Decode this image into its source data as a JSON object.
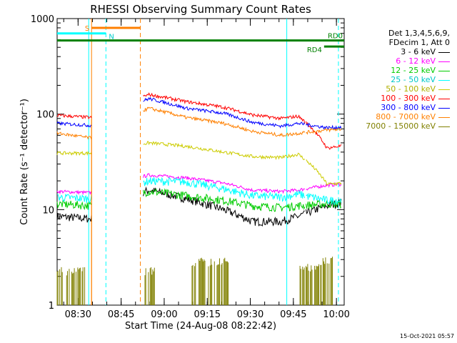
{
  "chart_data": {
    "type": "line",
    "title": "RHESSI Observing Summary Count Rates",
    "xlabel": "Start Time (24-Aug-08 08:22:42)",
    "ylabel": "Count Rate (s⁻¹ detector⁻¹)",
    "yscale": "log",
    "ylim": [
      1,
      1000
    ],
    "y_ticks": [
      1,
      10,
      100,
      1000
    ],
    "y_tick_labels": [
      "1",
      "10",
      "100",
      "1000"
    ],
    "xlim_minutes": [
      0,
      100
    ],
    "x_tick_minutes": [
      7.3,
      22.3,
      37.3,
      52.3,
      67.3,
      82.3,
      97.3
    ],
    "x_tick_labels": [
      "08:30",
      "08:45",
      "09:00",
      "09:15",
      "09:30",
      "09:45",
      "10:00"
    ],
    "legend_header": [
      "Det 1,3,4,5,6,9,",
      "FDecim 1, Att 0"
    ],
    "series": [
      {
        "name": "3 - 6 keV",
        "color": "#000000",
        "points": [
          [
            0,
            8.5
          ],
          [
            12,
            8.0
          ],
          [
            32,
            16
          ],
          [
            45,
            13
          ],
          [
            58,
            10
          ],
          [
            68,
            7.5
          ],
          [
            78,
            7.5
          ],
          [
            84,
            8.5
          ],
          [
            94,
            11
          ],
          [
            100,
            12
          ]
        ]
      },
      {
        "name": "6 - 12 keV",
        "color": "#ff00ff",
        "points": [
          [
            0,
            15.5
          ],
          [
            12,
            15
          ],
          [
            32,
            23
          ],
          [
            45,
            21.5
          ],
          [
            58,
            19
          ],
          [
            68,
            16
          ],
          [
            78,
            15.5
          ],
          [
            84,
            16
          ],
          [
            94,
            18
          ],
          [
            100,
            18.5
          ]
        ]
      },
      {
        "name": "12 - 25 keV",
        "color": "#00cc00",
        "points": [
          [
            0,
            11.5
          ],
          [
            12,
            11
          ],
          [
            32,
            15.5
          ],
          [
            45,
            14
          ],
          [
            58,
            12.5
          ],
          [
            68,
            11
          ],
          [
            78,
            10.5
          ],
          [
            84,
            11
          ],
          [
            94,
            11.5
          ],
          [
            100,
            11.5
          ]
        ]
      },
      {
        "name": "25 - 50 keV",
        "color": "#00ffff",
        "points": [
          [
            0,
            13.5
          ],
          [
            12,
            13
          ],
          [
            32,
            20
          ],
          [
            45,
            19.5
          ],
          [
            58,
            16.5
          ],
          [
            68,
            14
          ],
          [
            78,
            13.5
          ],
          [
            84,
            14.5
          ],
          [
            94,
            12.5
          ],
          [
            100,
            12.5
          ]
        ]
      },
      {
        "name": "50 - 100 keV",
        "color": "#cccc00",
        "points": [
          [
            0,
            39
          ],
          [
            12,
            39
          ],
          [
            32,
            50
          ],
          [
            45,
            46
          ],
          [
            58,
            40
          ],
          [
            68,
            36
          ],
          [
            78,
            35
          ],
          [
            84,
            38
          ],
          [
            94,
            18.5
          ],
          [
            100,
            19
          ]
        ]
      },
      {
        "name": "100 - 300 keV",
        "color": "#ff0000",
        "points": [
          [
            0,
            97
          ],
          [
            12,
            92
          ],
          [
            32,
            160
          ],
          [
            45,
            135
          ],
          [
            58,
            118
          ],
          [
            68,
            98
          ],
          [
            78,
            90
          ],
          [
            84,
            95
          ],
          [
            94,
            44
          ],
          [
            100,
            47
          ]
        ]
      },
      {
        "name": "300 - 800 keV",
        "color": "#0000ff",
        "points": [
          [
            0,
            80
          ],
          [
            12,
            76
          ],
          [
            32,
            145
          ],
          [
            45,
            115
          ],
          [
            58,
            102
          ],
          [
            68,
            82
          ],
          [
            78,
            75
          ],
          [
            84,
            80
          ],
          [
            94,
            72
          ],
          [
            100,
            73
          ]
        ]
      },
      {
        "name": "800 - 7000 keV",
        "color": "#ff8000",
        "points": [
          [
            0,
            63
          ],
          [
            12,
            56
          ],
          [
            32,
            115
          ],
          [
            45,
            92
          ],
          [
            58,
            80
          ],
          [
            68,
            66
          ],
          [
            78,
            60
          ],
          [
            84,
            63
          ],
          [
            94,
            68
          ],
          [
            100,
            70
          ]
        ]
      },
      {
        "name": "7000 - 15000 keV",
        "color": "#808000",
        "points": [
          [
            0,
            1
          ],
          [
            12,
            1
          ],
          [
            32,
            1
          ],
          [
            45,
            1
          ],
          [
            58,
            1
          ],
          [
            68,
            1
          ],
          [
            78,
            1
          ],
          [
            84,
            1
          ],
          [
            94,
            1
          ],
          [
            100,
            1
          ]
        ]
      }
    ],
    "data_gap_minutes": [
      12,
      29
    ],
    "bursts_7000_15000": [
      [
        0,
        10,
        2.4
      ],
      [
        30,
        34,
        2.4
      ],
      [
        47,
        60,
        3.0
      ],
      [
        84,
        92,
        2.6
      ],
      [
        92,
        96,
        3.1
      ]
    ],
    "annotations": [
      {
        "label": "S",
        "color": "#ff8000",
        "x_range": [
          12,
          29
        ],
        "y": 800
      },
      {
        "label": "N",
        "color": "#00ffff",
        "x_range": [
          0,
          17
        ],
        "y": 700
      },
      {
        "label": "RD0",
        "color": "#008000",
        "x_range": [
          0,
          100
        ],
        "y": 590
      },
      {
        "label": "RD4",
        "color": "#008000",
        "x_range": [
          93,
          100
        ],
        "y": 510
      }
    ],
    "vlines": [
      {
        "x": 11,
        "color": "#00ffff",
        "style": "solid"
      },
      {
        "x": 17,
        "color": "#00ffff",
        "style": "dashed"
      },
      {
        "x": 12,
        "color": "#ff8000",
        "style": "solid"
      },
      {
        "x": 29,
        "color": "#ff8000",
        "style": "dashed"
      },
      {
        "x": 80,
        "color": "#00ffff",
        "style": "solid"
      },
      {
        "x": 98,
        "color": "#00ffff",
        "style": "dashed"
      }
    ]
  },
  "timestamp": "15-Oct-2021 05:57"
}
